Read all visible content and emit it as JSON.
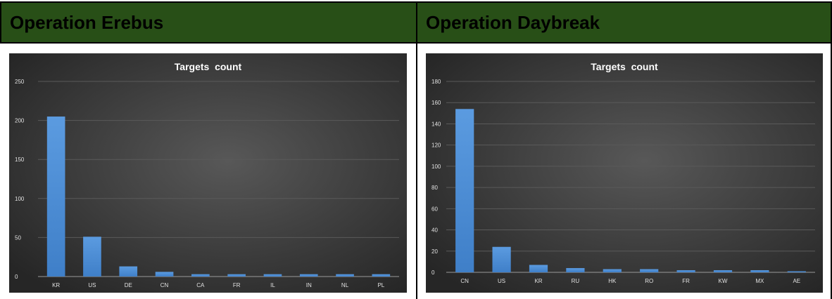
{
  "panels": [
    {
      "heading": "Operation Erebus",
      "chart_data": {
        "type": "bar",
        "title": "Targets  count",
        "categories": [
          "KR",
          "US",
          "DE",
          "CN",
          "CA",
          "FR",
          "IL",
          "IN",
          "NL",
          "PL"
        ],
        "values": [
          205,
          51,
          13,
          6,
          3,
          3,
          3,
          3,
          3,
          3
        ],
        "ylim": [
          0,
          250
        ],
        "yticks": [
          0,
          50,
          100,
          150,
          200,
          250
        ],
        "xlabel": "",
        "ylabel": "",
        "grid": true,
        "bar_color": "#4e8ed6",
        "background": "#3a3a3a"
      }
    },
    {
      "heading": "Operation Daybreak",
      "chart_data": {
        "type": "bar",
        "title": "Targets  count",
        "categories": [
          "CN",
          "US",
          "KR",
          "RU",
          "HK",
          "RO",
          "FR",
          "KW",
          "MX",
          "AE"
        ],
        "values": [
          154,
          24,
          7,
          4,
          3,
          3,
          2,
          2,
          2,
          1
        ],
        "ylim": [
          0,
          180
        ],
        "yticks": [
          0,
          20,
          40,
          60,
          80,
          100,
          120,
          140,
          160,
          180
        ],
        "xlabel": "",
        "ylabel": "",
        "grid": true,
        "bar_color": "#4e8ed6",
        "background": "#3a3a3a"
      }
    }
  ]
}
